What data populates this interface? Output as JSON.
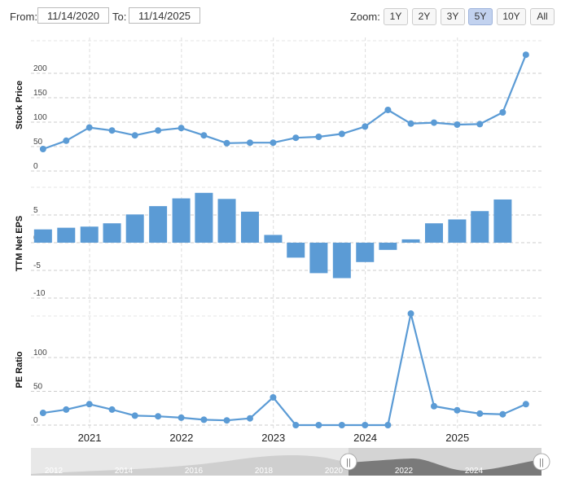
{
  "toolbar": {
    "from_label": "From:",
    "from_value": "11/14/2020",
    "to_label": "To:",
    "to_value": "11/14/2025",
    "zoom_label": "Zoom:",
    "zoom_options": [
      "1Y",
      "2Y",
      "3Y",
      "5Y",
      "10Y",
      "All"
    ],
    "zoom_selected": "5Y"
  },
  "colors": {
    "series": "#5b9bd5",
    "active_zoom": "#c2d2ef"
  },
  "chart_data": [
    {
      "type": "line",
      "ylabel": "Stock Price",
      "ylim": [
        0,
        250
      ],
      "yticks": [
        0,
        50,
        100,
        150,
        200
      ],
      "x": [
        "2020-06-30",
        "2020-09-30",
        "2020-12-31",
        "2021-03-31",
        "2021-06-30",
        "2021-09-30",
        "2021-12-31",
        "2022-03-31",
        "2022-06-30",
        "2022-09-30",
        "2022-12-31",
        "2023-03-31",
        "2023-06-30",
        "2023-09-30",
        "2023-12-31",
        "2024-03-31",
        "2024-06-30",
        "2024-09-30",
        "2024-12-31",
        "2025-03-31",
        "2025-06-30",
        "2025-09-30"
      ],
      "values": [
        45,
        62,
        89,
        83,
        73,
        83,
        88,
        73,
        57,
        58,
        58,
        68,
        70,
        76,
        91,
        125,
        97,
        99,
        95,
        96,
        120,
        238
      ]
    },
    {
      "type": "bar",
      "ylabel": "TTM Net EPS",
      "ylim": [
        -12,
        10
      ],
      "yticks": [
        -10,
        -5,
        0,
        5
      ],
      "x": [
        "2020-06-30",
        "2020-09-30",
        "2020-12-31",
        "2021-03-31",
        "2021-06-30",
        "2021-09-30",
        "2021-12-31",
        "2022-03-31",
        "2022-06-30",
        "2022-09-30",
        "2022-12-31",
        "2023-03-31",
        "2023-06-30",
        "2023-09-30",
        "2023-12-31",
        "2024-03-31",
        "2024-06-30",
        "2024-09-30",
        "2024-12-31",
        "2025-03-31",
        "2025-06-30",
        "2025-09-30"
      ],
      "values": [
        2.4,
        2.7,
        2.9,
        3.5,
        5.1,
        6.6,
        8.0,
        9.0,
        7.9,
        5.6,
        1.4,
        -2.7,
        -5.5,
        -6.4,
        -3.5,
        -1.3,
        0.6,
        3.5,
        4.2,
        5.7,
        7.8,
        null
      ]
    },
    {
      "type": "line",
      "ylabel": "PE Ratio",
      "ylim": [
        0,
        150
      ],
      "yticks": [
        0,
        50,
        100
      ],
      "x": [
        "2020-06-30",
        "2020-09-30",
        "2020-12-31",
        "2021-03-31",
        "2021-06-30",
        "2021-09-30",
        "2021-12-31",
        "2022-03-31",
        "2022-06-30",
        "2022-09-30",
        "2022-12-31",
        "2023-03-31",
        "2023-06-30",
        "2023-09-30",
        "2023-12-31",
        "2024-03-31",
        "2024-06-30",
        "2024-09-30",
        "2024-12-31",
        "2025-03-31",
        "2025-06-30",
        "2025-09-30"
      ],
      "values": [
        18,
        23,
        31,
        23,
        14,
        13,
        11,
        8,
        7,
        10,
        41,
        0,
        0,
        0,
        0,
        0,
        165,
        28,
        22,
        17,
        16,
        31
      ]
    }
  ],
  "xaxis": {
    "ticks": [
      {
        "label": "2021",
        "date": "2021-01-01"
      },
      {
        "label": "2022",
        "date": "2022-01-01"
      },
      {
        "label": "2023",
        "date": "2023-01-01"
      },
      {
        "label": "2024",
        "date": "2024-01-01"
      },
      {
        "label": "2025",
        "date": "2025-01-01"
      }
    ]
  },
  "navigator": {
    "ticks": [
      "2012",
      "2014",
      "2016",
      "2018",
      "2020",
      "2022",
      "2024"
    ],
    "handle_glyph": "||"
  }
}
